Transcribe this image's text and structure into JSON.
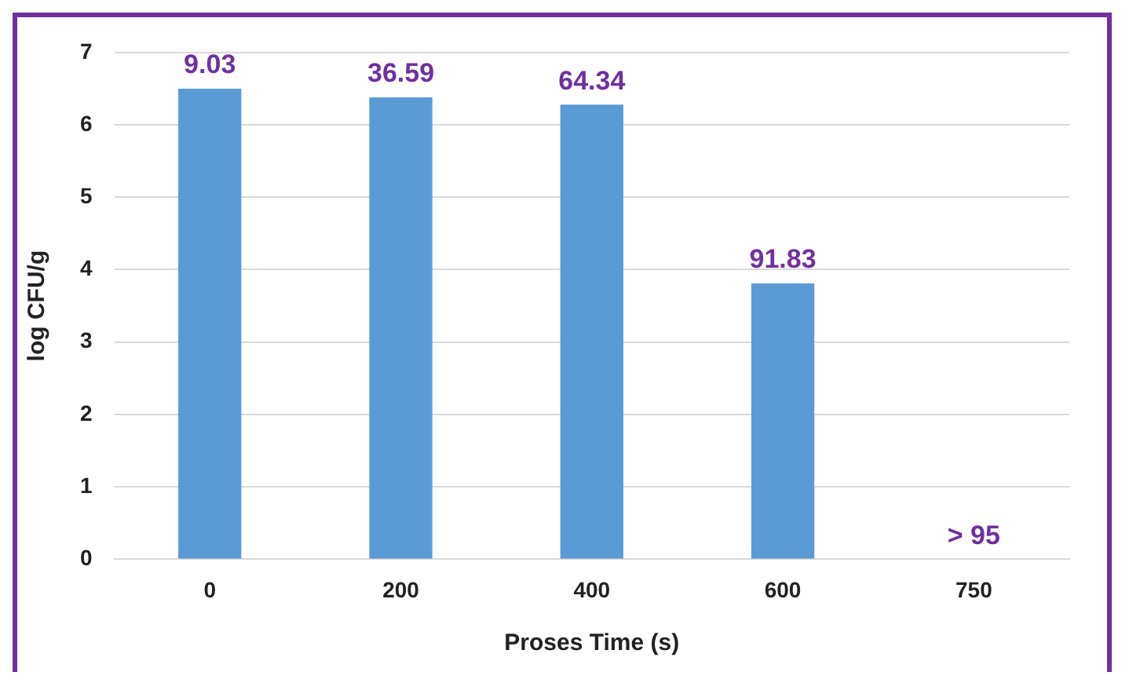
{
  "chart_data": {
    "type": "bar",
    "xlabel": "Proses Time (s)",
    "ylabel": "log CFU/g",
    "categories": [
      "0",
      "200",
      "400",
      "600",
      "750"
    ],
    "values": [
      6.5,
      6.38,
      6.28,
      3.81,
      0
    ],
    "annotations": [
      {
        "text": "9.03",
        "x": "0",
        "y": 6.5
      },
      {
        "text": "36.59",
        "x": "200",
        "y": 6.38
      },
      {
        "text": "64.34",
        "x": "400",
        "y": 6.28
      },
      {
        "text": "91.83",
        "x": "600",
        "y": 3.81
      },
      {
        "text": "> 95",
        "x": "750",
        "y": 0
      }
    ],
    "color": "#5b9bd5",
    "ylim": [
      0,
      7
    ],
    "yticks": [
      0,
      1,
      2,
      3,
      4,
      5,
      6,
      7
    ],
    "grid": "y",
    "legend": false
  }
}
